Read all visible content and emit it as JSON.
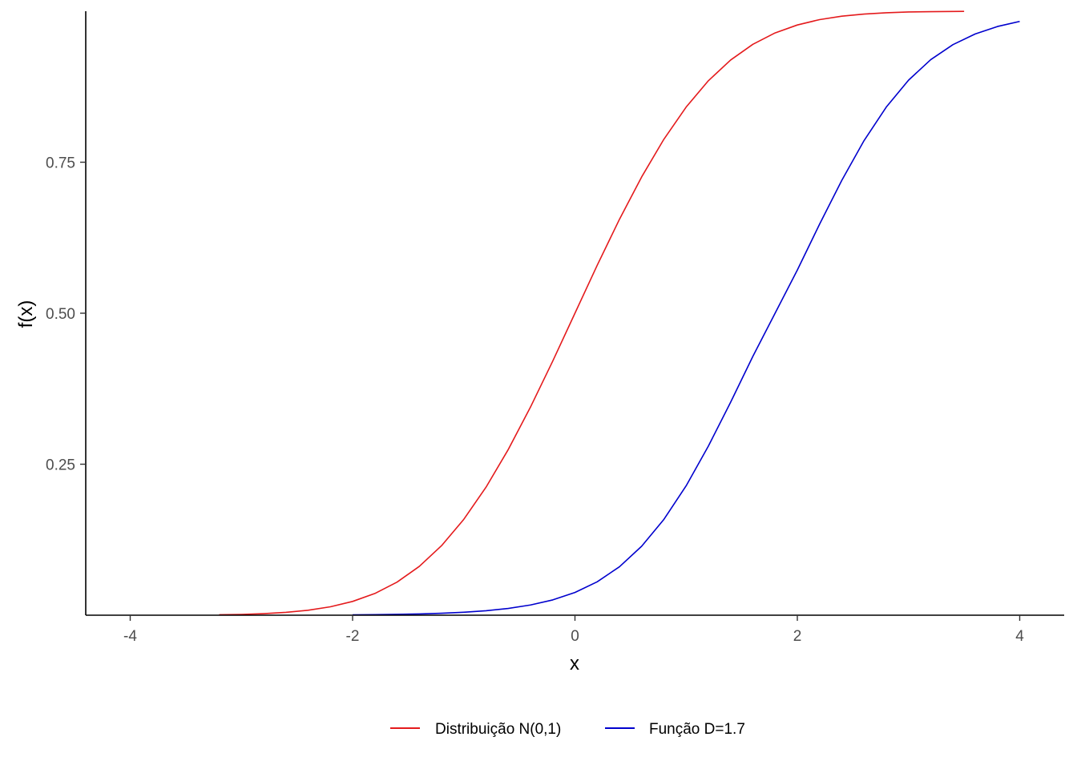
{
  "chart_data": {
    "type": "line",
    "title": "",
    "xlabel": "x",
    "ylabel": "f(x)",
    "xlim": [
      -4.4,
      4.4
    ],
    "ylim": [
      0,
      1
    ],
    "x_ticks": [
      -4,
      -2,
      0,
      2,
      4
    ],
    "x_tick_labels": [
      "-4",
      "-2",
      "0",
      "2",
      "4"
    ],
    "y_ticks": [
      0.25,
      0.5,
      0.75
    ],
    "y_tick_labels": [
      "0.25",
      "0.50",
      "0.75"
    ],
    "grid": false,
    "legend_position": "bottom",
    "series": [
      {
        "name": "Distribuição N(0,1)",
        "color": "#e41a1c",
        "x": [
          -3.2,
          -3.0,
          -2.8,
          -2.6,
          -2.4,
          -2.2,
          -2.0,
          -1.8,
          -1.6,
          -1.4,
          -1.2,
          -1.0,
          -0.8,
          -0.6,
          -0.4,
          -0.2,
          0.0,
          0.2,
          0.4,
          0.6,
          0.8,
          1.0,
          1.2,
          1.4,
          1.6,
          1.8,
          2.0,
          2.2,
          2.4,
          2.6,
          2.8,
          3.0,
          3.2,
          3.5
        ],
        "y": [
          0.0007,
          0.0013,
          0.0026,
          0.0047,
          0.0082,
          0.0139,
          0.0228,
          0.0359,
          0.0548,
          0.0808,
          0.1151,
          0.1587,
          0.2119,
          0.2743,
          0.3446,
          0.4207,
          0.5,
          0.5793,
          0.6554,
          0.7257,
          0.7881,
          0.8413,
          0.8849,
          0.9192,
          0.9452,
          0.9641,
          0.9772,
          0.9861,
          0.9918,
          0.9953,
          0.9974,
          0.9987,
          0.9993,
          0.9998
        ]
      },
      {
        "name": "Função D=1.7",
        "color": "#0000cd",
        "x": [
          -2.0,
          -1.8,
          -1.6,
          -1.4,
          -1.2,
          -1.0,
          -0.8,
          -0.6,
          -0.4,
          -0.2,
          0.0,
          0.2,
          0.4,
          0.6,
          0.8,
          1.0,
          1.2,
          1.4,
          1.6,
          1.8,
          2.0,
          2.2,
          2.4,
          2.6,
          2.8,
          3.0,
          3.2,
          3.4,
          3.6,
          3.8,
          4.0
        ],
        "y": [
          0.0006,
          0.0009,
          0.0014,
          0.0021,
          0.0032,
          0.0049,
          0.0074,
          0.0112,
          0.0169,
          0.0253,
          0.0376,
          0.0553,
          0.0802,
          0.1142,
          0.1587,
          0.2142,
          0.28,
          0.3526,
          0.4286,
          0.5,
          0.5714,
          0.6474,
          0.72,
          0.7858,
          0.8413,
          0.8858,
          0.9198,
          0.9447,
          0.9624,
          0.9747,
          0.9831
        ]
      }
    ]
  }
}
